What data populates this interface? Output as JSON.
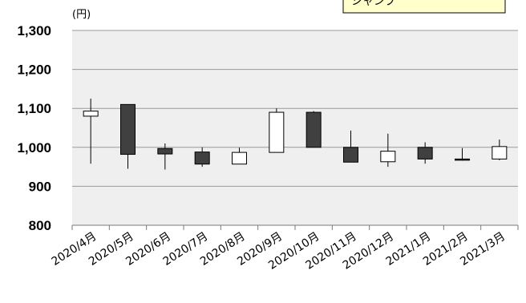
{
  "chart_data": {
    "type": "candlestick",
    "unit_label": "(円)",
    "callout": "シャンプ",
    "y_ticks": [
      "1,300",
      "1,200",
      "1,100",
      "1,000",
      "900",
      "800"
    ],
    "ylim": [
      800,
      1300
    ],
    "grid": true,
    "categories": [
      "2020/4月",
      "2020/5月",
      "2020/6月",
      "2020/7月",
      "2020/8月",
      "2020/9月",
      "2020/10月",
      "2020/11月",
      "2020/12月",
      "2021/1月",
      "2021/2月",
      "2021/3月"
    ],
    "series": [
      {
        "open": 1080,
        "high": 1125,
        "low": 958,
        "close": 1093
      },
      {
        "open": 1110,
        "high": 1110,
        "low": 945,
        "close": 982
      },
      {
        "open": 997,
        "high": 1010,
        "low": 943,
        "close": 983
      },
      {
        "open": 988,
        "high": 1000,
        "low": 950,
        "close": 957
      },
      {
        "open": 957,
        "high": 999,
        "low": 957,
        "close": 987
      },
      {
        "open": 987,
        "high": 1100,
        "low": 987,
        "close": 1090
      },
      {
        "open": 1090,
        "high": 1093,
        "low": 1000,
        "close": 1000
      },
      {
        "open": 1000,
        "high": 1043,
        "low": 962,
        "close": 962
      },
      {
        "open": 963,
        "high": 1035,
        "low": 950,
        "close": 990
      },
      {
        "open": 1000,
        "high": 1013,
        "low": 958,
        "close": 970
      },
      {
        "open": 970,
        "high": 998,
        "low": 966,
        "close": 968
      },
      {
        "open": 970,
        "high": 1020,
        "low": 967,
        "close": 1002
      }
    ],
    "colors": {
      "up": "#ffffff",
      "down": "#404040",
      "plot_bg": "#efefef",
      "callout_bg": "#ffffcc"
    }
  }
}
